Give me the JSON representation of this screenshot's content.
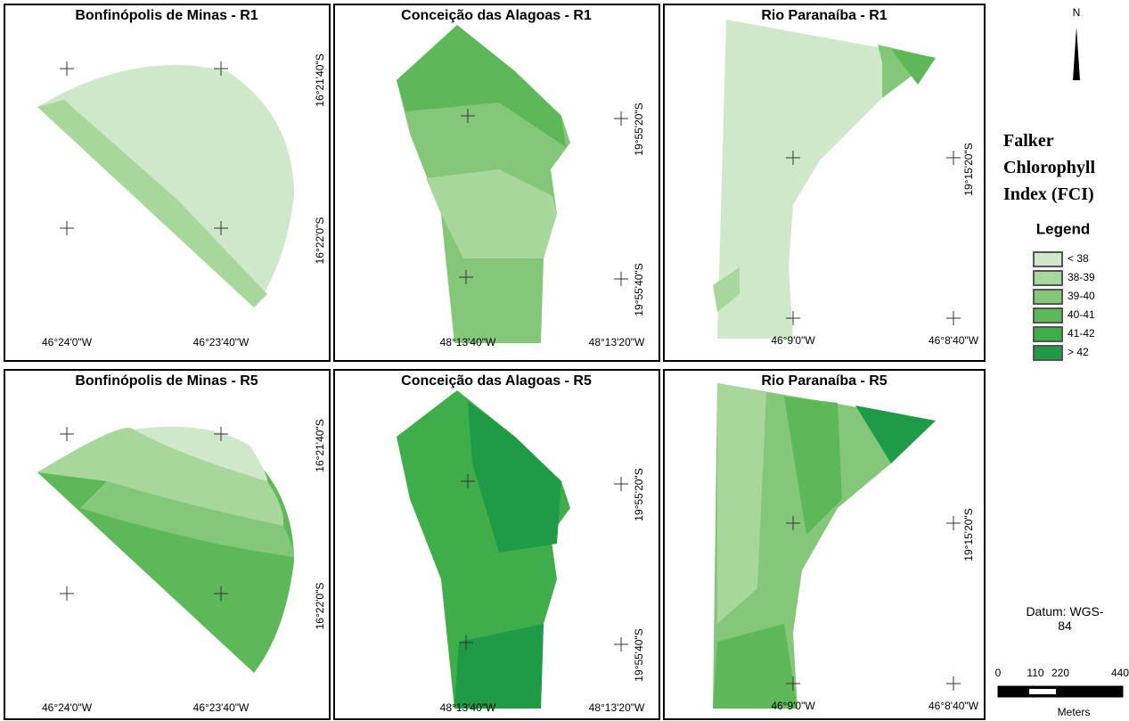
{
  "panels": [
    {
      "title": "Bonfinópolis de Minas - R1",
      "x_labels": [
        "46°24'0\"W",
        "46°23'40\"W"
      ],
      "y_labels": [
        "16°21'40\"S",
        "16°22'0\"S"
      ]
    },
    {
      "title": "Conceição das Alagoas - R1",
      "x_labels": [
        "48°13'40\"W",
        "48°13'20\"W"
      ],
      "y_labels": [
        "19°55'20\"S",
        "19°55'40\"S"
      ]
    },
    {
      "title": "Rio Paranaíba - R1",
      "x_labels": [
        "46°9'0\"W",
        "46°8'40\"W"
      ],
      "y_labels": [
        "19°15'20\"S"
      ]
    },
    {
      "title": "Bonfinópolis de Minas - R5",
      "x_labels": [
        "46°24'0\"W",
        "46°23'40\"W"
      ],
      "y_labels": [
        "16°21'40\"S",
        "16°22'0\"S"
      ]
    },
    {
      "title": "Conceição das Alagoas - R5",
      "x_labels": [
        "48°13'40\"W",
        "48°13'20\"W"
      ],
      "y_labels": [
        "19°55'20\"S",
        "19°55'40\"S"
      ]
    },
    {
      "title": "Rio Paranaíba - R5",
      "x_labels": [
        "46°9'0\"W",
        "46°8'40\"W"
      ],
      "y_labels": [
        "19°15'20\"S"
      ]
    }
  ],
  "side": {
    "north": "N",
    "title": "Falker Chlorophyll Index (FCI)",
    "legend_title": "Legend",
    "legend": [
      {
        "label": "< 38",
        "color": "#cfe8c9"
      },
      {
        "label": "38-39",
        "color": "#a7d79b"
      },
      {
        "label": "39-40",
        "color": "#84c779"
      },
      {
        "label": "40-41",
        "color": "#5db957"
      },
      {
        "label": "41-42",
        "color": "#3fae4a"
      },
      {
        "label": "> 42",
        "color": "#1f9b48"
      }
    ],
    "datum": "Datum: WGS-84",
    "scale": {
      "ticks": [
        0,
        110,
        220,
        440
      ],
      "unit": "Meters"
    }
  }
}
